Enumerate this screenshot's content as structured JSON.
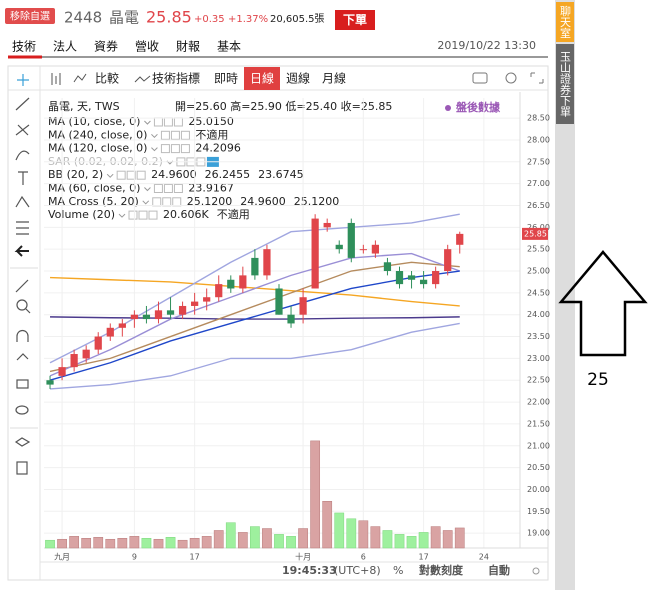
{
  "header": {
    "watch_button": "移除自選",
    "code": "2448",
    "name": "晶電",
    "price": "25.85",
    "change": "+0.35",
    "change_pct": "+1.37%",
    "volume": "20,605.5張",
    "order_button": "下單"
  },
  "tabs": [
    "技術",
    "法人",
    "資券",
    "營收",
    "財報",
    "基本"
  ],
  "timestamp": "2019/10/22 13:30",
  "side_tabs": [
    "聊天室",
    "玉山證券下單"
  ],
  "toolbar": {
    "compare": "比較",
    "indicators": "技術指標",
    "intervals": [
      "即時",
      "日線",
      "週線",
      "月線"
    ],
    "active_interval": 1
  },
  "legend": {
    "symbol": "晶電, 天, TWS",
    "ohlc": "開=25.60 高=25.90 低=25.40 收=25.85",
    "after_hours": "盤後數據",
    "studies": [
      {
        "name": "MA (10, close, 0)",
        "values": [
          {
            "text": "25.0150",
            "color": "#2b4fc7"
          }
        ]
      },
      {
        "name": "MA (240, close, 0)",
        "values": [
          {
            "text": "不適用",
            "color": "#222"
          }
        ]
      },
      {
        "name": "MA (120, close, 0)",
        "values": [
          {
            "text": "24.2096",
            "color": "#f29b1d"
          }
        ]
      },
      {
        "name": "SAR (0.02, 0.02, 0.2)",
        "values": [],
        "disabled": true
      },
      {
        "name": "BB (20, 2)",
        "values": [
          {
            "text": "24.9600",
            "color": "#2b4fc7"
          },
          {
            "text": "26.2455",
            "color": "#2b4fc7"
          },
          {
            "text": "23.6745",
            "color": "#2b4fc7"
          }
        ]
      },
      {
        "name": "MA (60, close, 0)",
        "values": [
          {
            "text": "23.9167",
            "color": "#222"
          }
        ]
      },
      {
        "name": "MA Cross (5, 20)",
        "values": [
          {
            "text": "25.1200",
            "color": "#7a8fc9"
          },
          {
            "text": "24.9600",
            "color": "#2b4fc7"
          },
          {
            "text": "25.1200",
            "color": "#1a2f8f"
          }
        ]
      },
      {
        "name": "Volume (20)",
        "values": [
          {
            "text": "20.606K",
            "color": "#c0392b"
          },
          {
            "text": "不適用",
            "color": "#222"
          }
        ]
      }
    ]
  },
  "status": {
    "time": "19:45:33",
    "tz": "(UTC+8)",
    "pct": "%",
    "log": "對數刻度",
    "auto": "自動"
  },
  "annotation": "25",
  "chart_data": {
    "type": "candlestick",
    "open": [
      22.5,
      22.6,
      22.8,
      23.0,
      23.2,
      23.5,
      23.7,
      23.9,
      24.0,
      23.9,
      24.1,
      24.0,
      24.2,
      24.3,
      24.4,
      24.8,
      24.6,
      25.3,
      24.9,
      24.6,
      24.0,
      24.0,
      24.6,
      26.0,
      25.6,
      26.1,
      25.5,
      25.4,
      25.2,
      25.0,
      24.9,
      24.8,
      24.7,
      25.0,
      25.6
    ],
    "high": [
      22.6,
      23.0,
      23.2,
      23.3,
      23.6,
      23.8,
      23.9,
      24.1,
      24.2,
      24.3,
      24.4,
      24.3,
      24.5,
      24.6,
      24.9,
      24.9,
      25.1,
      25.5,
      25.6,
      24.7,
      24.2,
      24.6,
      26.3,
      26.2,
      25.7,
      26.2,
      25.6,
      25.7,
      25.3,
      25.1,
      25.0,
      25.0,
      25.1,
      25.6,
      25.9
    ],
    "low": [
      22.3,
      22.5,
      22.7,
      22.9,
      23.1,
      23.4,
      23.5,
      23.7,
      23.8,
      23.8,
      23.9,
      23.9,
      24.0,
      24.1,
      24.3,
      24.5,
      24.5,
      24.8,
      24.8,
      24.0,
      23.7,
      23.8,
      24.6,
      25.9,
      25.4,
      25.2,
      25.4,
      25.3,
      24.9,
      24.6,
      24.6,
      24.6,
      24.6,
      24.9,
      25.4
    ],
    "close": [
      22.4,
      22.8,
      23.1,
      23.2,
      23.5,
      23.7,
      23.8,
      24.0,
      23.9,
      24.1,
      24.0,
      24.2,
      24.3,
      24.4,
      24.7,
      24.6,
      24.9,
      24.9,
      25.5,
      24.0,
      23.8,
      24.4,
      26.2,
      26.1,
      25.5,
      25.3,
      25.5,
      25.6,
      25.0,
      24.7,
      24.8,
      24.7,
      25.0,
      25.5,
      25.85
    ],
    "volume": [
      8,
      9,
      12,
      10,
      11,
      9,
      10,
      12,
      10,
      9,
      11,
      8,
      10,
      12,
      18,
      26,
      16,
      22,
      20,
      14,
      12,
      20,
      110,
      48,
      36,
      30,
      28,
      22,
      18,
      14,
      12,
      16,
      22,
      18,
      20.6
    ],
    "vlim": [
      0,
      115
    ],
    "up_color": "#e0454a",
    "down_color": "#2f8f5b",
    "vol_up_color": "#d9a3a3",
    "vol_down_color": "#9ef09e",
    "line_x": [
      0,
      5,
      10,
      15,
      20,
      25,
      30,
      34
    ],
    "series": [
      {
        "color": "#f5a623",
        "values": [
          24.85,
          24.8,
          24.75,
          24.65,
          24.55,
          24.45,
          24.3,
          24.2
        ]
      },
      {
        "color": "#4b3a8c",
        "values": [
          23.95,
          23.93,
          23.92,
          23.9,
          23.9,
          23.92,
          23.93,
          23.95
        ]
      },
      {
        "color": "#a0a6e0",
        "values": [
          22.9,
          23.6,
          24.4,
          25.2,
          25.9,
          26.0,
          26.1,
          26.3
        ]
      },
      {
        "color": "#a0a6e0",
        "values": [
          22.3,
          22.4,
          22.6,
          23.0,
          23.0,
          23.2,
          23.6,
          23.8
        ]
      },
      {
        "color": "#b58b5e",
        "values": [
          22.7,
          23.0,
          23.5,
          24.0,
          24.5,
          25.0,
          25.2,
          25.1
        ]
      },
      {
        "color": "#9a8fd6",
        "values": [
          22.6,
          23.2,
          23.9,
          24.4,
          24.9,
          25.3,
          25.4,
          25.0
        ]
      },
      {
        "color": "#1f47c9",
        "values": [
          22.5,
          22.9,
          23.4,
          23.8,
          24.2,
          24.6,
          24.85,
          25.0
        ]
      }
    ],
    "xlim": [
      -0.5,
      39
    ],
    "xticks": [
      {
        "value": 1,
        "label": "九月"
      },
      {
        "value": 7,
        "label": "9"
      },
      {
        "value": 12,
        "label": "17"
      },
      {
        "value": 21,
        "label": "十月"
      },
      {
        "value": 26,
        "label": "6"
      },
      {
        "value": 31,
        "label": "17"
      },
      {
        "value": 36,
        "label": "24"
      }
    ],
    "ylim": [
      18.66,
      28.96
    ],
    "yticks": [
      {
        "value": 19,
        "label": "19.00"
      },
      {
        "value": 19.5,
        "label": "19.50"
      },
      {
        "value": 20,
        "label": "20.00"
      },
      {
        "value": 20.5,
        "label": "20.50"
      },
      {
        "value": 21,
        "label": "21.00"
      },
      {
        "value": 21.5,
        "label": "21.50"
      },
      {
        "value": 22,
        "label": "22.00"
      },
      {
        "value": 22.5,
        "label": "22.50"
      },
      {
        "value": 23,
        "label": "23.00"
      },
      {
        "value": 23.5,
        "label": "23.50"
      },
      {
        "value": 24,
        "label": "24.00"
      },
      {
        "value": 24.5,
        "label": "24.50"
      },
      {
        "value": 25,
        "label": "25.00"
      },
      {
        "value": 25.5,
        "label": "25.50"
      },
      {
        "value": 26,
        "label": "26.00"
      },
      {
        "value": 26.5,
        "label": "26.50"
      },
      {
        "value": 27,
        "label": "27.00"
      },
      {
        "value": 27.5,
        "label": "27.50"
      },
      {
        "value": 28,
        "label": "28.00"
      },
      {
        "value": 28.5,
        "label": "28.50"
      }
    ],
    "grid": true
  }
}
